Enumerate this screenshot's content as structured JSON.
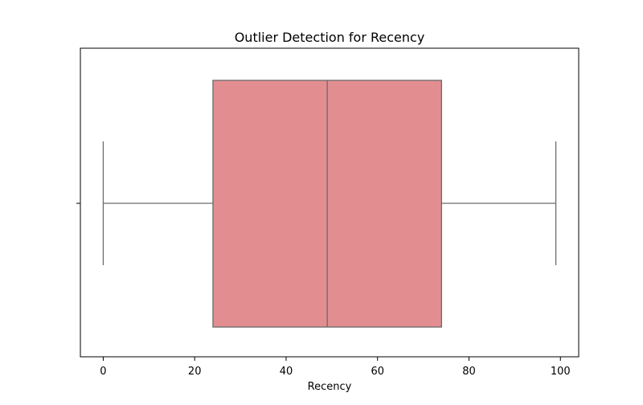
{
  "chart_data": {
    "type": "box",
    "title": "Outlier Detection for Recency",
    "xlabel": "Recency",
    "ylabel": "",
    "xlim": [
      -5,
      104
    ],
    "xticks": [
      0,
      20,
      40,
      60,
      80,
      100
    ],
    "grid": false,
    "box": {
      "whisker_low": 0,
      "q1": 24,
      "median": 49,
      "q3": 74,
      "whisker_high": 99,
      "outliers": []
    },
    "colors": {
      "box_fill": "#e28e90",
      "line": "#6b6b6b"
    }
  }
}
